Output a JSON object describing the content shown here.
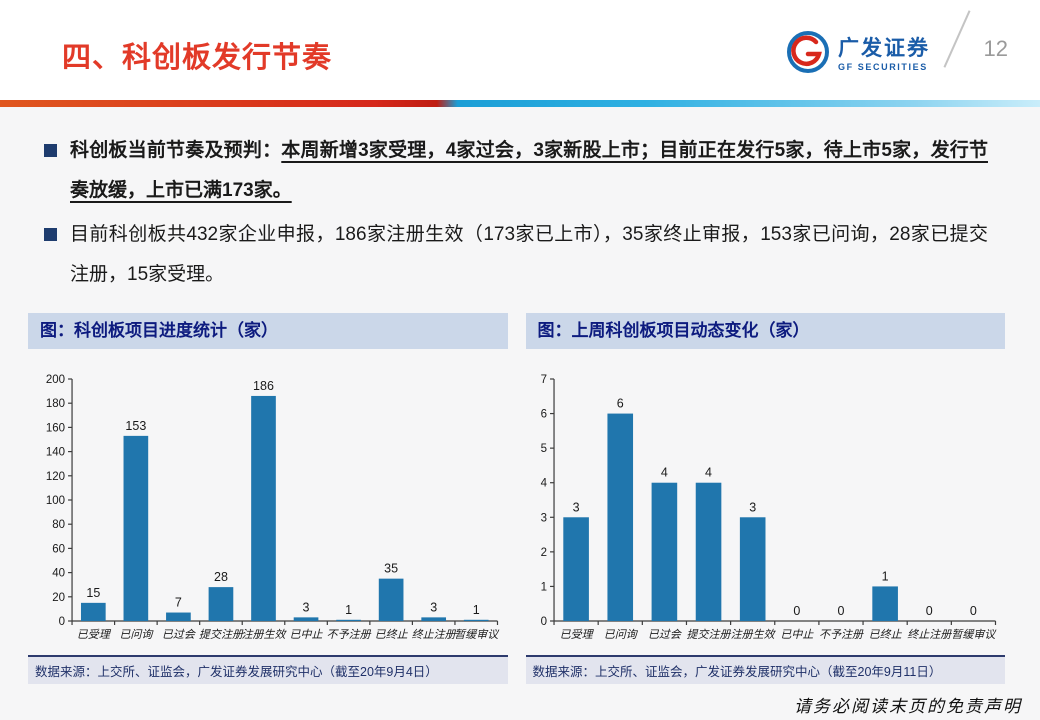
{
  "header": {
    "title": "四、科创板发行节奏",
    "page_number": "12",
    "logo": {
      "name_cn": "广发证券",
      "name_en": "GF SECURITIES"
    }
  },
  "bullets": [
    {
      "lead": "科创板当前节奏及预判：",
      "text": "本周新增3家受理，4家过会，3家新股上市；目前正在发行5家，待上市5家，发行节奏放缓，上市已满173家。"
    },
    {
      "lead": "",
      "text": "目前科创板共432家企业申报，186家注册生效（173家已上市），35家终止审报，153家已问询，28家已提交注册，15家受理。"
    }
  ],
  "chart_data": [
    {
      "type": "bar",
      "title": "图：科创板项目进度统计（家）",
      "categories": [
        "已受理",
        "已问询",
        "已过会",
        "提交注册",
        "注册生效",
        "已中止",
        "不予注册",
        "已终止",
        "终止注册",
        "暂缓审议"
      ],
      "values": [
        15,
        153,
        7,
        28,
        186,
        3,
        1,
        35,
        3,
        1
      ],
      "ylim": [
        0,
        200
      ],
      "ytick_step": 20,
      "grid": false,
      "legend": "none",
      "bar_color": "#2076ad",
      "source": "数据来源：上交所、证监会，广发证券发展研究中心（截至20年9月4日）"
    },
    {
      "type": "bar",
      "title": "图：上周科创板项目动态变化（家）",
      "categories": [
        "已受理",
        "已问询",
        "已过会",
        "提交注册",
        "注册生效",
        "已中止",
        "不予注册",
        "已终止",
        "终止注册",
        "暂缓审议"
      ],
      "values": [
        3,
        6,
        4,
        4,
        3,
        0,
        0,
        1,
        0,
        0
      ],
      "ylim": [
        0,
        7
      ],
      "ytick_step": 1,
      "grid": false,
      "legend": "none",
      "bar_color": "#2076ad",
      "source": "数据来源：上交所、证监会，广发证券发展研究中心（截至20年9月11日）"
    }
  ],
  "footer": {
    "disclaimer": "请务必阅读末页的免责声明"
  },
  "colors": {
    "accent_red": "#e23a28",
    "brand_blue": "#1a5ca8",
    "bar_blue": "#2076ad",
    "navy": "#0d1b7f"
  }
}
